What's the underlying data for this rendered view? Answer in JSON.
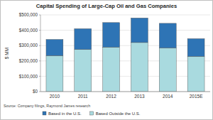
{
  "chart_data": {
    "type": "bar",
    "stacked": true,
    "title": "Capital Spending of Large-Cap Oil and Gas Companies",
    "y_label": "$ MM",
    "source": "Source: Company filings, Raymond James research",
    "categories": [
      "2010",
      "2011",
      "2012",
      "2013",
      "2014",
      "2015E"
    ],
    "series": [
      {
        "name": "Based Outside the U.S.",
        "color": "#a9dadf",
        "values": [
          235000,
          275000,
          290000,
          320000,
          285000,
          230000
        ]
      },
      {
        "name": "Based in the U.S.",
        "color": "#2e74b5",
        "values": [
          105000,
          135000,
          160000,
          160000,
          160000,
          115000
        ]
      }
    ],
    "ylim": [
      0,
      500000
    ],
    "yticks": [
      {
        "value": 0,
        "label": "$0"
      },
      {
        "value": 100000,
        "label": "$100,000"
      },
      {
        "value": 200000,
        "label": "$200,000"
      },
      {
        "value": 300000,
        "label": "$300,000"
      },
      {
        "value": 400000,
        "label": "$400,000"
      },
      {
        "value": 500000,
        "label": "$500,000"
      }
    ],
    "grid": true,
    "legend": "bottom"
  }
}
